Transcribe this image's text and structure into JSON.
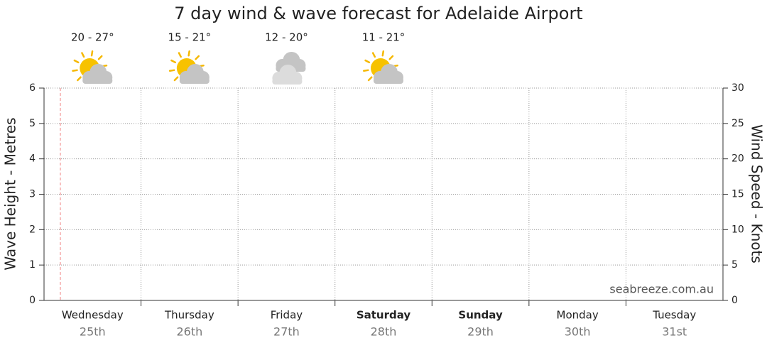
{
  "chart_data": {
    "type": "line",
    "title": "7 day wind & wave forecast for Adelaide Airport",
    "y_label": "Wave Height - Metres",
    "y2_label": "Wind Speed - Knots",
    "categories": [
      "Wednesday",
      "Thursday",
      "Friday",
      "Saturday",
      "Sunday",
      "Monday",
      "Tuesday"
    ],
    "dates": [
      "25th",
      "26th",
      "27th",
      "28th",
      "29th",
      "30th",
      "31st"
    ],
    "bold": [
      false,
      false,
      false,
      true,
      true,
      false,
      false
    ],
    "temperatures": [
      "20 - 27°",
      "15 - 21°",
      "12 - 20°",
      "11 - 21°"
    ],
    "icons": [
      "partly-cloudy",
      "partly-cloudy",
      "cloudy",
      "partly-cloudy"
    ],
    "ylim": [
      0,
      6
    ],
    "yticks": [
      0,
      1,
      2,
      3,
      4,
      5,
      6
    ],
    "y2lim": [
      0,
      30
    ],
    "y2ticks": [
      0,
      5,
      10,
      15,
      20,
      25,
      30
    ],
    "grid": true,
    "watermark": "seabreeze.com.au"
  }
}
